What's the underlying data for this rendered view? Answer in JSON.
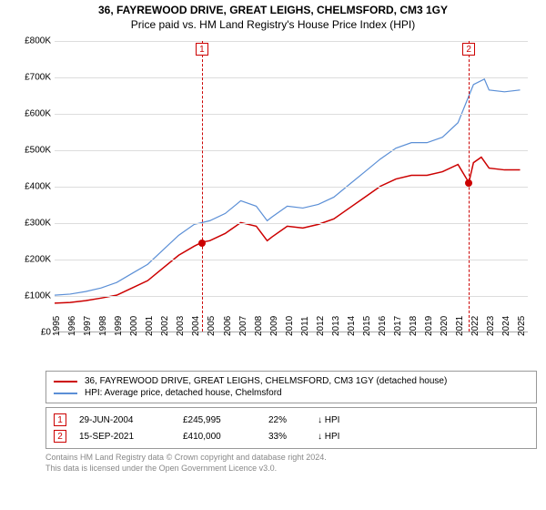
{
  "title": "36, FAYREWOOD DRIVE, GREAT LEIGHS, CHELMSFORD, CM3 1GY",
  "subtitle": "Price paid vs. HM Land Registry's House Price Index (HPI)",
  "chart": {
    "type": "line",
    "background_color": "#ffffff",
    "grid_color": "#dddddd",
    "axis_color": "#aaaaaa",
    "label_fontsize": 10,
    "ylim": [
      0,
      800000
    ],
    "ytick_step": 100000,
    "yticks": [
      "£0",
      "£100K",
      "£200K",
      "£300K",
      "£400K",
      "£500K",
      "£600K",
      "£700K",
      "£800K"
    ],
    "xlim": [
      1995,
      2025.5
    ],
    "xticks": [
      1995,
      1996,
      1997,
      1998,
      1999,
      2000,
      2001,
      2002,
      2003,
      2004,
      2005,
      2006,
      2007,
      2008,
      2009,
      2010,
      2011,
      2012,
      2013,
      2014,
      2015,
      2016,
      2017,
      2018,
      2019,
      2020,
      2021,
      2022,
      2023,
      2024,
      2025
    ],
    "series": [
      {
        "name": "price_paid",
        "label": "36, FAYREWOOD DRIVE, GREAT LEIGHS, CHELMSFORD, CM3 1GY (detached house)",
        "color": "#cc0000",
        "line_width": 1.5,
        "points": [
          [
            1995,
            78000
          ],
          [
            1996,
            80000
          ],
          [
            1997,
            85000
          ],
          [
            1998,
            92000
          ],
          [
            1999,
            100000
          ],
          [
            2000,
            120000
          ],
          [
            2001,
            140000
          ],
          [
            2002,
            175000
          ],
          [
            2003,
            210000
          ],
          [
            2004,
            235000
          ],
          [
            2004.5,
            245995
          ],
          [
            2005,
            250000
          ],
          [
            2006,
            270000
          ],
          [
            2007,
            300000
          ],
          [
            2008,
            290000
          ],
          [
            2008.7,
            250000
          ],
          [
            2009,
            260000
          ],
          [
            2010,
            290000
          ],
          [
            2011,
            285000
          ],
          [
            2012,
            295000
          ],
          [
            2013,
            310000
          ],
          [
            2014,
            340000
          ],
          [
            2015,
            370000
          ],
          [
            2016,
            400000
          ],
          [
            2017,
            420000
          ],
          [
            2018,
            430000
          ],
          [
            2019,
            430000
          ],
          [
            2020,
            440000
          ],
          [
            2021,
            460000
          ],
          [
            2021.7,
            410000
          ],
          [
            2022,
            465000
          ],
          [
            2022.5,
            480000
          ],
          [
            2023,
            450000
          ],
          [
            2024,
            445000
          ],
          [
            2025,
            445000
          ]
        ]
      },
      {
        "name": "hpi",
        "label": "HPI: Average price, detached house, Chelmsford",
        "color": "#5b8fd6",
        "line_width": 1.2,
        "points": [
          [
            1995,
            100000
          ],
          [
            1996,
            103000
          ],
          [
            1997,
            110000
          ],
          [
            1998,
            120000
          ],
          [
            1999,
            135000
          ],
          [
            2000,
            160000
          ],
          [
            2001,
            185000
          ],
          [
            2002,
            225000
          ],
          [
            2003,
            265000
          ],
          [
            2004,
            295000
          ],
          [
            2005,
            305000
          ],
          [
            2006,
            325000
          ],
          [
            2007,
            360000
          ],
          [
            2008,
            345000
          ],
          [
            2008.7,
            305000
          ],
          [
            2009,
            315000
          ],
          [
            2010,
            345000
          ],
          [
            2011,
            340000
          ],
          [
            2012,
            350000
          ],
          [
            2013,
            370000
          ],
          [
            2014,
            405000
          ],
          [
            2015,
            440000
          ],
          [
            2016,
            475000
          ],
          [
            2017,
            505000
          ],
          [
            2018,
            520000
          ],
          [
            2019,
            520000
          ],
          [
            2020,
            535000
          ],
          [
            2021,
            575000
          ],
          [
            2022,
            680000
          ],
          [
            2022.7,
            695000
          ],
          [
            2023,
            665000
          ],
          [
            2024,
            660000
          ],
          [
            2025,
            665000
          ]
        ]
      }
    ],
    "vlines": [
      {
        "x": 2004.5,
        "color": "#cc0000",
        "marker_index": "1",
        "dot_y": 245995
      },
      {
        "x": 2021.7,
        "color": "#cc0000",
        "marker_index": "2",
        "dot_y": 410000
      }
    ],
    "dot_color": "#cc0000"
  },
  "legend": {
    "items": [
      {
        "color": "#cc0000",
        "label": "36, FAYREWOOD DRIVE, GREAT LEIGHS, CHELMSFORD, CM3 1GY (detached house)"
      },
      {
        "color": "#5b8fd6",
        "label": "HPI: Average price, detached house, Chelmsford"
      }
    ]
  },
  "sales": [
    {
      "index": "1",
      "date": "29-JUN-2004",
      "price": "£245,995",
      "pct": "22%",
      "note": "↓ HPI"
    },
    {
      "index": "2",
      "date": "15-SEP-2021",
      "price": "£410,000",
      "pct": "33%",
      "note": "↓ HPI"
    }
  ],
  "licence_line1": "Contains HM Land Registry data © Crown copyright and database right 2024.",
  "licence_line2": "This data is licensed under the Open Government Licence v3.0."
}
